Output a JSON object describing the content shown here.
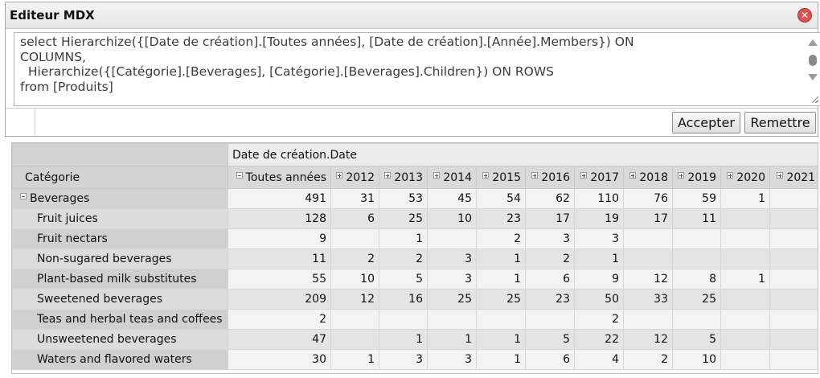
{
  "editor": {
    "title": "Editeur MDX",
    "close_label": "✕",
    "query": "select Hierarchize({[Date de création].[Toutes années], [Date de création].[Année].Members}) ON\nCOLUMNS,\n  Hierarchize({[Catégorie].[Beverages], [Catégorie].[Beverages].Children}) ON ROWS\nfrom [Produits]",
    "accept_label": "Accepter",
    "reset_label": "Remettre"
  },
  "grid": {
    "column_dimension": "Date de création.Date",
    "row_dimension": "Catégorie",
    "columns": [
      "Toutes années",
      "2012",
      "2013",
      "2014",
      "2015",
      "2016",
      "2017",
      "2018",
      "2019",
      "2020",
      "2021"
    ],
    "rows": [
      {
        "label": "Beverages",
        "level": 0,
        "values": [
          "491",
          "31",
          "53",
          "45",
          "54",
          "62",
          "110",
          "76",
          "59",
          "1",
          ""
        ]
      },
      {
        "label": "Fruit juices",
        "level": 1,
        "values": [
          "128",
          "6",
          "25",
          "10",
          "23",
          "17",
          "19",
          "17",
          "11",
          "",
          ""
        ]
      },
      {
        "label": "Fruit nectars",
        "level": 1,
        "values": [
          "9",
          "",
          "1",
          "",
          "2",
          "3",
          "3",
          "",
          "",
          "",
          ""
        ]
      },
      {
        "label": "Non-sugared beverages",
        "level": 1,
        "values": [
          "11",
          "2",
          "2",
          "3",
          "1",
          "2",
          "1",
          "",
          "",
          "",
          ""
        ]
      },
      {
        "label": "Plant-based milk substitutes",
        "level": 1,
        "values": [
          "55",
          "10",
          "5",
          "3",
          "1",
          "6",
          "9",
          "12",
          "8",
          "1",
          ""
        ]
      },
      {
        "label": "Sweetened beverages",
        "level": 1,
        "values": [
          "209",
          "12",
          "16",
          "25",
          "25",
          "23",
          "50",
          "33",
          "25",
          "",
          ""
        ]
      },
      {
        "label": "Teas and herbal teas and coffees",
        "level": 1,
        "values": [
          "2",
          "",
          "",
          "",
          "",
          "",
          "2",
          "",
          "",
          "",
          ""
        ]
      },
      {
        "label": "Unsweetened beverages",
        "level": 1,
        "values": [
          "47",
          "",
          "1",
          "1",
          "1",
          "5",
          "22",
          "12",
          "5",
          "",
          ""
        ]
      },
      {
        "label": "Waters and flavored waters",
        "level": 1,
        "values": [
          "30",
          "1",
          "3",
          "3",
          "1",
          "6",
          "4",
          "2",
          "10",
          "",
          ""
        ]
      }
    ]
  }
}
